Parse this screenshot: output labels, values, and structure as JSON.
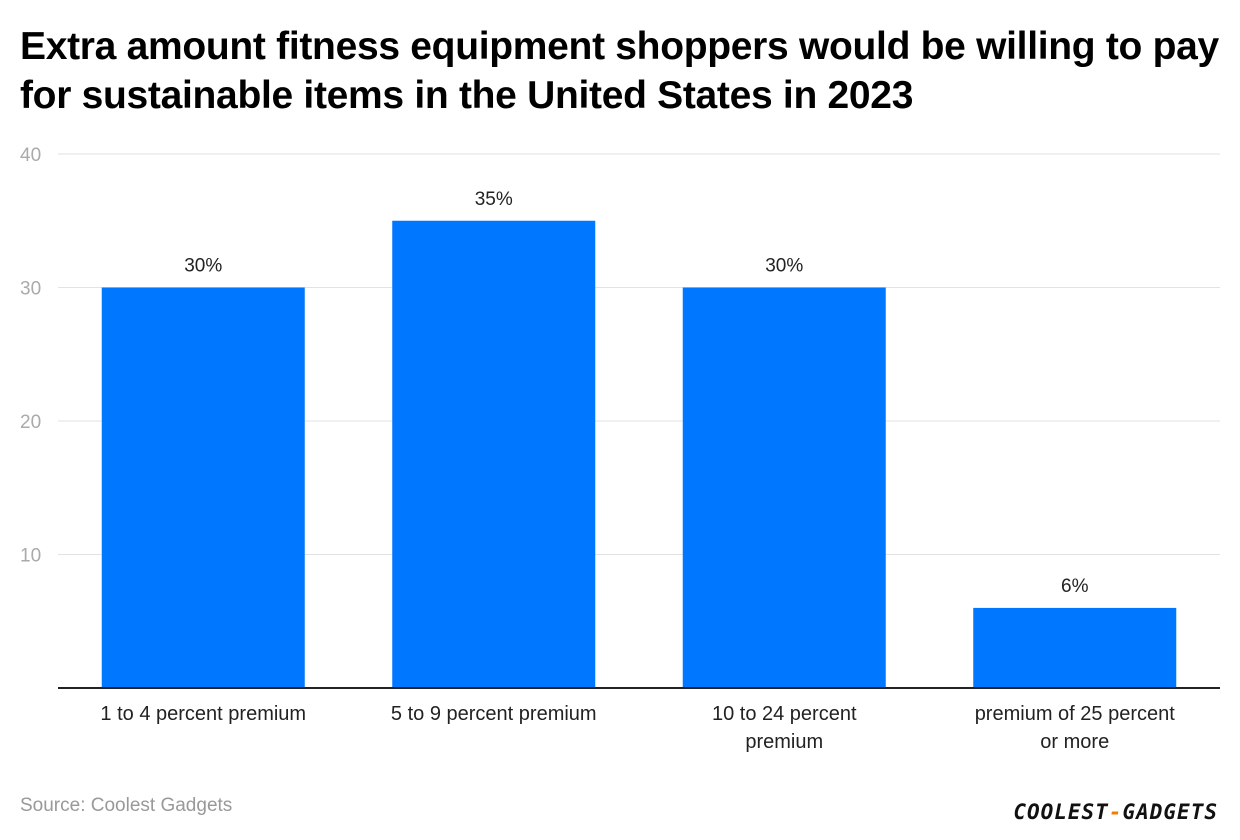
{
  "chart_data": {
    "type": "bar",
    "title": "Extra amount fitness equipment shoppers would be willing to pay for sustainable items in the United States in 2023",
    "categories": [
      [
        "1 to 4 percent premium"
      ],
      [
        "5 to 9 percent premium"
      ],
      [
        "10 to 24 percent",
        "premium"
      ],
      [
        "premium of 25 percent",
        "or more"
      ]
    ],
    "values": [
      30,
      35,
      30,
      6
    ],
    "value_labels": [
      "30%",
      "35%",
      "30%",
      "6%"
    ],
    "yticks": [
      10,
      20,
      30,
      40
    ],
    "ylim": [
      0,
      40
    ],
    "xlabel": "",
    "ylabel": "",
    "grid": true,
    "bar_color": "#0077ff"
  },
  "footer": {
    "source": "Source: Coolest Gadgets",
    "logo_left": "COOLEST",
    "logo_dash": "-",
    "logo_right": "GADGETS"
  }
}
